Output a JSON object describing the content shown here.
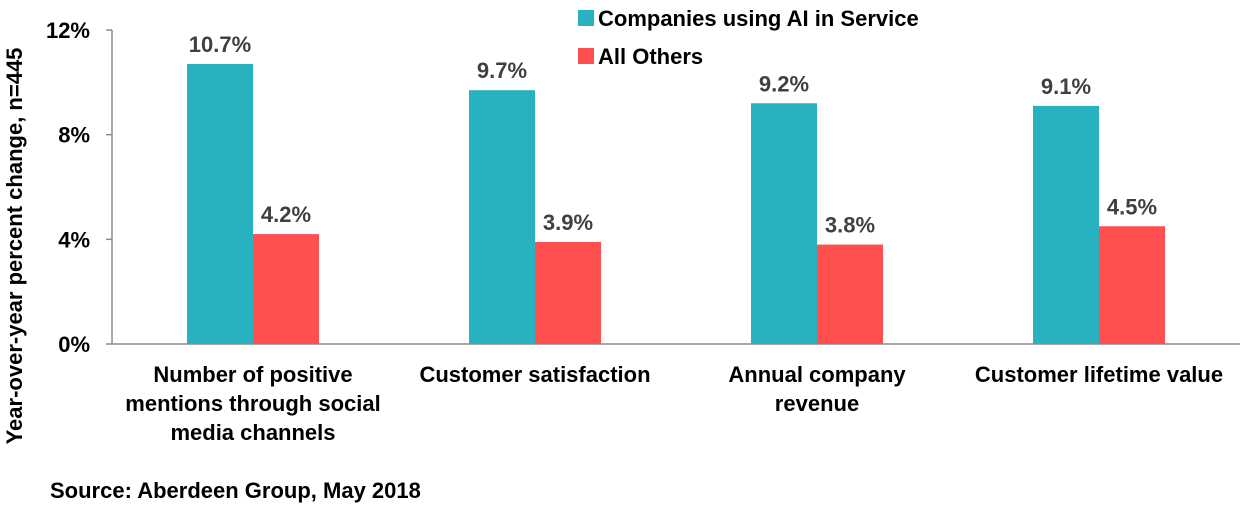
{
  "chart_data": {
    "type": "bar",
    "categories": [
      [
        "Number of positive",
        "mentions through social",
        "media channels"
      ],
      [
        "Customer satisfaction"
      ],
      [
        "Annual company",
        "revenue"
      ],
      [
        "Customer lifetime value"
      ]
    ],
    "series": [
      {
        "name": "Companies using AI in Service",
        "color": "#28B2BF",
        "values": [
          10.7,
          9.7,
          9.2,
          9.1
        ],
        "labels": [
          "10.7%",
          "9.7%",
          "9.2%",
          "9.1%"
        ]
      },
      {
        "name": "All Others",
        "color": "#FF4F4F",
        "values": [
          4.2,
          3.9,
          3.8,
          4.5
        ],
        "labels": [
          "4.2%",
          "3.9%",
          "3.8%",
          "4.5%"
        ]
      }
    ],
    "ylabel": "Year-over-year  percent change, n=445",
    "ylim": [
      0,
      12
    ],
    "yticks": [
      0,
      4,
      8,
      12
    ],
    "ytick_labels": [
      "0%",
      "4%",
      "8%",
      "12%"
    ],
    "grid": false,
    "legend_position": "top-center"
  },
  "source_note": "Source: Aberdeen Group, May 2018"
}
